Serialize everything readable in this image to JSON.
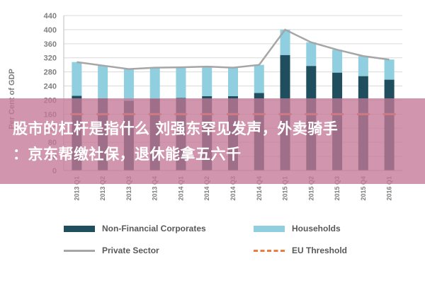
{
  "chart_data": {
    "type": "bar",
    "ylabel": "Per Cent of GDP",
    "ylim": [
      0,
      440
    ],
    "yticks": [
      0,
      40,
      80,
      120,
      160,
      200,
      240,
      280,
      320,
      360,
      400,
      440
    ],
    "categories": [
      "2013 Q1",
      "2013 Q2",
      "2013 Q3",
      "2013 Q4",
      "2014 Q1",
      "2014 Q2",
      "2014 Q3",
      "2014 Q4",
      "2015 Q1",
      "2015 Q2",
      "2015 Q3",
      "2015 Q4",
      "2016 Q1"
    ],
    "series": [
      {
        "name": "Non-Financial Corporates",
        "kind": "bar",
        "color": "#1f4e5f",
        "values": [
          212,
          205,
          198,
          204,
          206,
          211,
          211,
          220,
          328,
          297,
          278,
          268,
          258
        ]
      },
      {
        "name": "Households",
        "kind": "bar",
        "color": "#8fcfe0",
        "values": [
          96,
          93,
          90,
          88,
          87,
          84,
          81,
          80,
          72,
          67,
          65,
          57,
          57
        ]
      },
      {
        "name": "Private Sector",
        "kind": "line",
        "color": "#a6a6a6",
        "values": [
          308,
          298,
          288,
          292,
          293,
          295,
          292,
          300,
          400,
          364,
          343,
          325,
          315
        ]
      },
      {
        "name": "EU Threshold",
        "kind": "dashed",
        "color": "#f07b3f",
        "values": [
          160,
          160,
          160,
          160,
          160,
          160,
          160,
          160,
          160,
          160,
          160,
          160,
          160
        ]
      }
    ],
    "grid": true,
    "legend_position": "bottom"
  },
  "overlay": {
    "line1": "股市的杠杆是指什么 刘强东罕见发声，外卖骑手",
    "line2": "：京东帮缴社保，退休能拿五六千"
  },
  "legend": {
    "items": [
      "Non-Financial Corporates",
      "Households",
      "Private Sector",
      "EU Threshold"
    ]
  }
}
